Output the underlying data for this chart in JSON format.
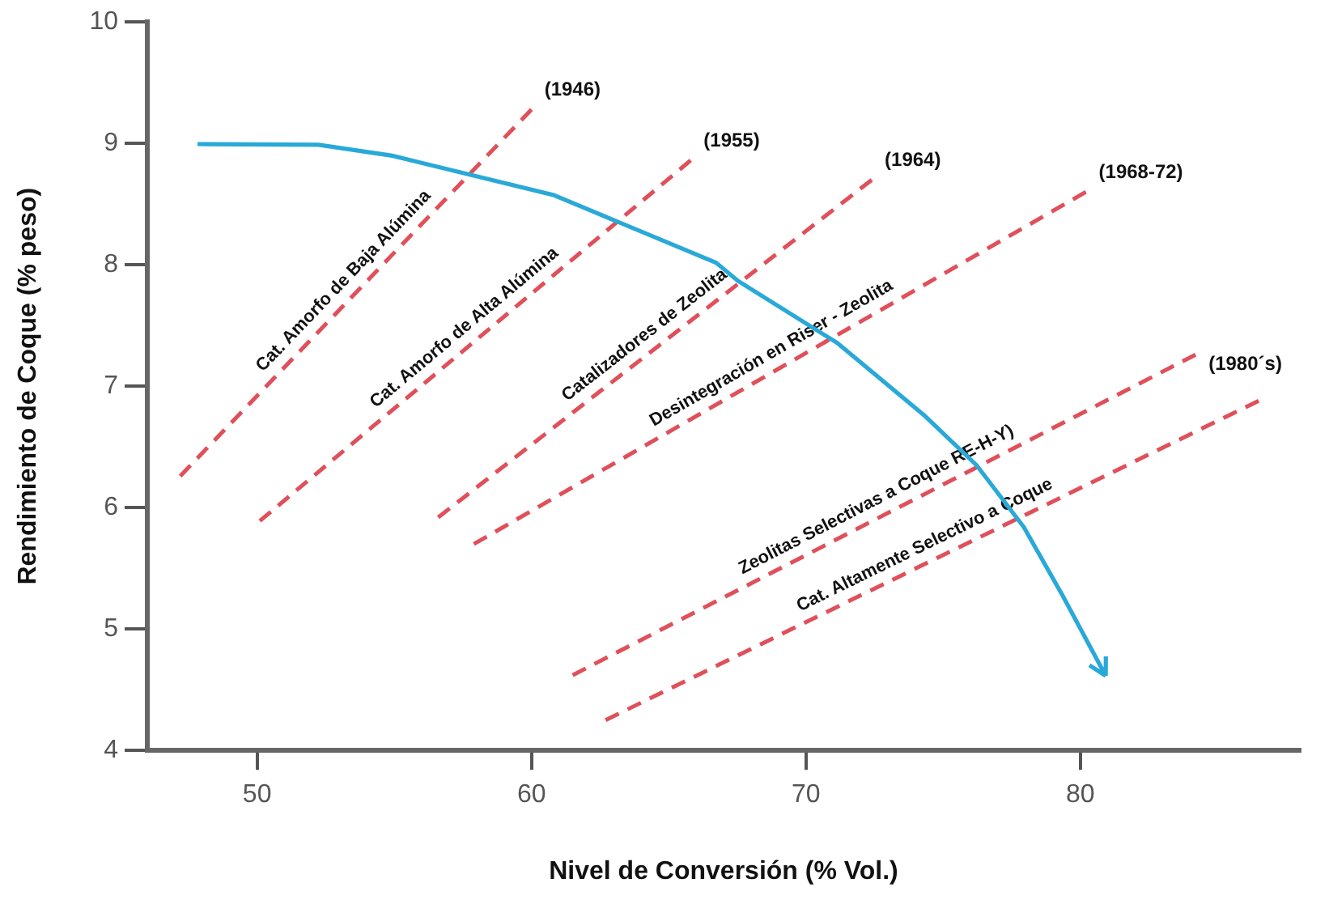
{
  "chart_data": {
    "type": "line",
    "xlabel": "Nivel de Conversión (% Vol.)",
    "ylabel": "Rendimiento de Coque (% peso)",
    "xlim": [
      46,
      88
    ],
    "xticks": [
      50,
      60,
      70,
      80
    ],
    "ylim": [
      4,
      10
    ],
    "yticks": [
      4,
      5,
      6,
      7,
      8,
      9,
      10
    ],
    "grid": false,
    "legend": false,
    "marker": "none",
    "series": [
      {
        "color": "#e0505a",
        "line_style": "dashed",
        "x": [
          47.2,
          60.0
        ],
        "values": [
          6.26,
          9.28
        ]
      },
      {
        "color": "#e0505a",
        "line_style": "dashed",
        "x": [
          50.1,
          65.8
        ],
        "values": [
          5.89,
          8.86
        ]
      },
      {
        "color": "#e0505a",
        "line_style": "dashed",
        "x": [
          56.6,
          72.4
        ],
        "values": [
          5.92,
          8.7
        ]
      },
      {
        "color": "#e0505a",
        "line_style": "dashed",
        "x": [
          57.9,
          80.2
        ],
        "values": [
          5.7,
          8.6
        ]
      },
      {
        "color": "#e0505a",
        "line_style": "dashed",
        "x": [
          61.5,
          84.2
        ],
        "values": [
          4.62,
          7.26
        ]
      },
      {
        "color": "#e0505a",
        "line_style": "dashed",
        "x": [
          62.7,
          86.5
        ],
        "values": [
          4.25,
          6.88
        ]
      }
    ],
    "annotations": [
      {
        "text": "Cat. Amorfo de Baja Alúmina",
        "x": 53.6,
        "y": 7.77
      },
      {
        "text": "Cat. Amorfo de Alta Alúmina",
        "x": 57.95,
        "y": 7.375
      },
      {
        "text": "Catalizadores de Zeolita",
        "x": 64.5,
        "y": 7.31
      },
      {
        "text": "Desintegración en Riser - Zeolita",
        "x": 69.05,
        "y": 7.15
      },
      {
        "text": "Zeolitas Selectivas a Coque RE-H-Y)",
        "x": 72.85,
        "y": 5.94
      },
      {
        "text": "Cat. Altamente Selectivo a Coque",
        "x": 74.6,
        "y": 5.565
      },
      "(1946)",
      "(1955)",
      "(1964)",
      "(1968-72)",
      "(1980´s)"
    ]
  }
}
